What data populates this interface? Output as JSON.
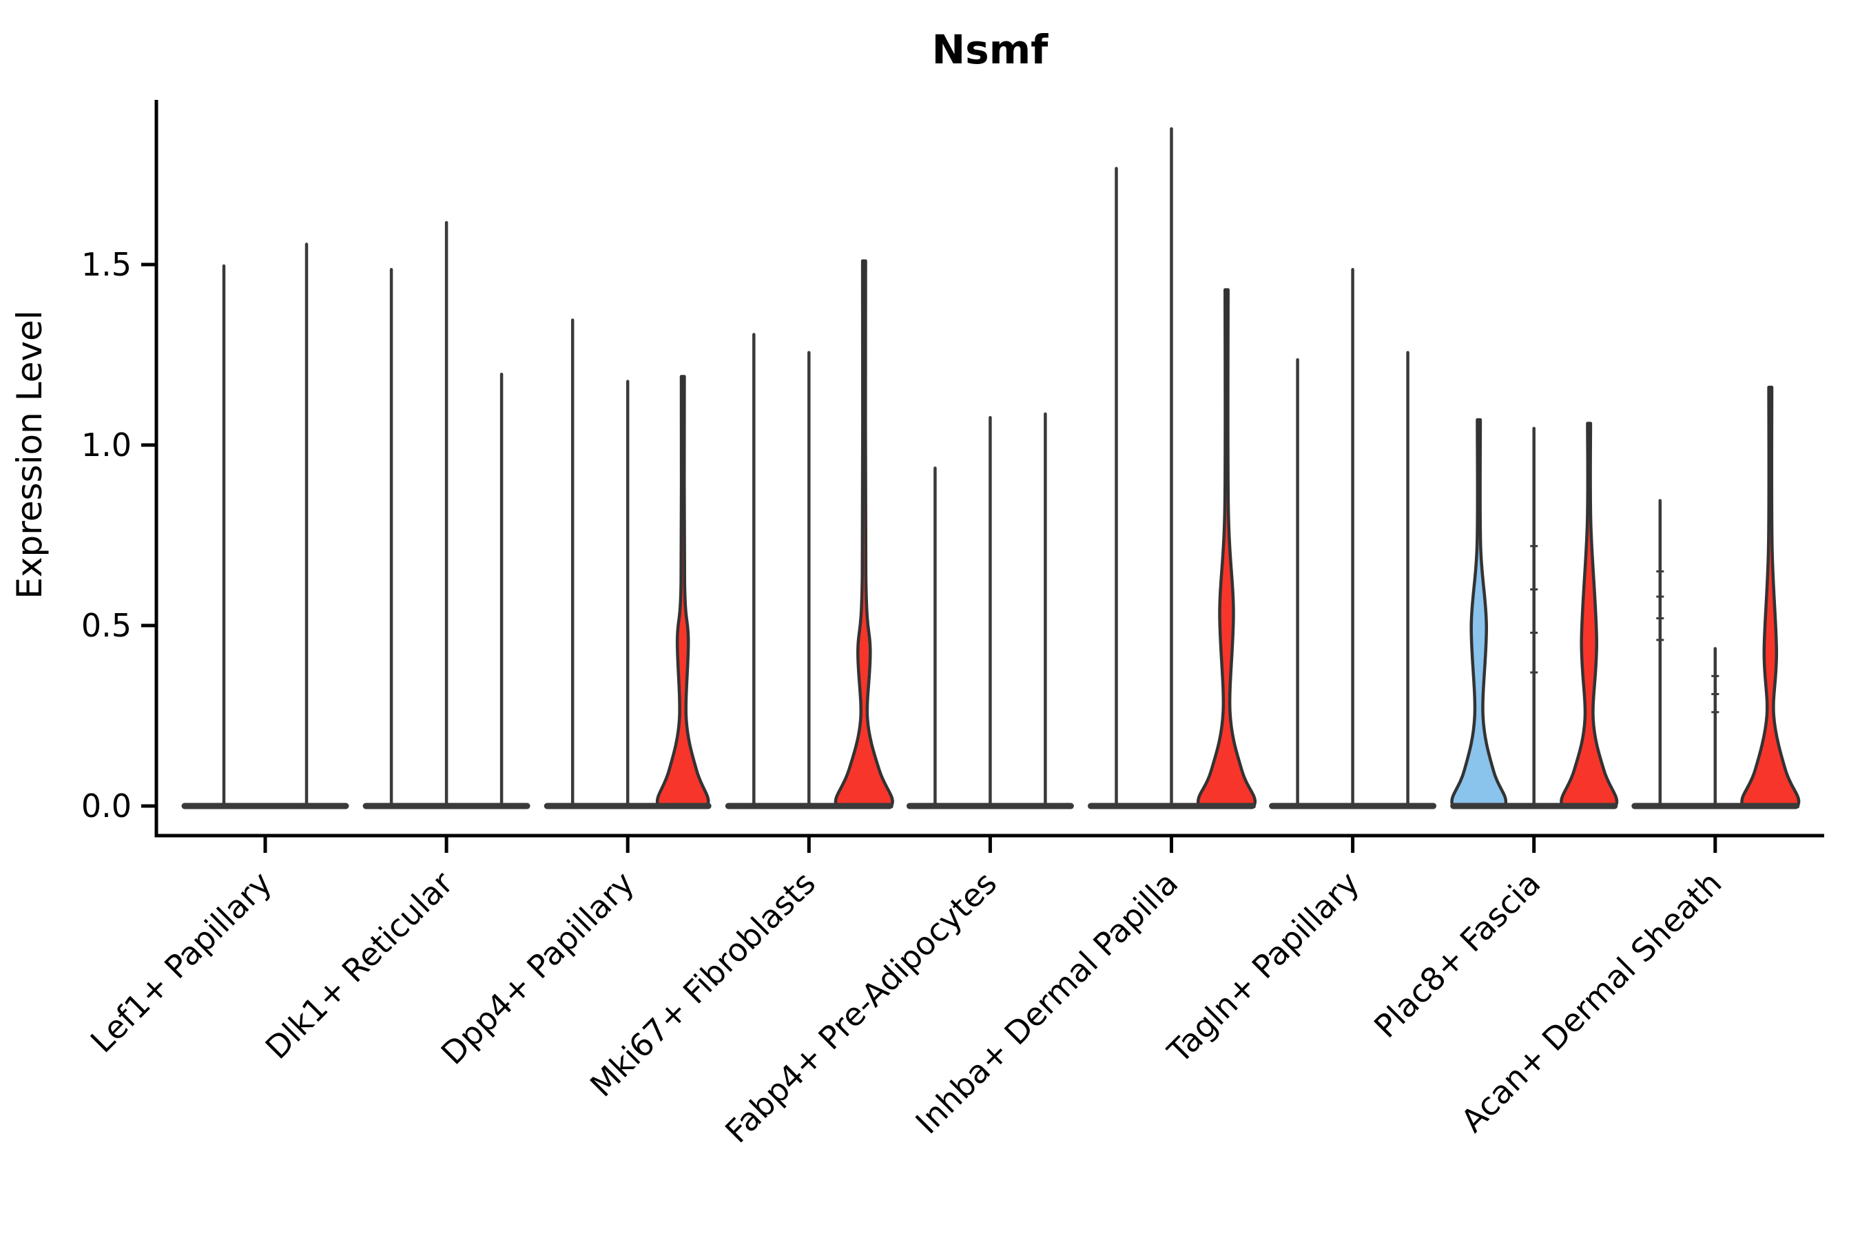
{
  "chart_data": {
    "type": "violin",
    "title": "Nsmf",
    "xlabel": "",
    "ylabel": "Expression Level",
    "ytick_labels": [
      "0.0",
      "0.5",
      "1.0",
      "1.5"
    ],
    "ytick_values": [
      0,
      0.5,
      1.0,
      1.5
    ],
    "ylim": [
      -0.08,
      1.96
    ],
    "grid": false,
    "legend": "none",
    "categories": [
      "Lef1+ Papillary",
      "Dlk1+ Reticular",
      "Dpp4+ Papillary",
      "Mki67+ Fibroblasts",
      "Fabp4+ Pre-Adipocytes",
      "Inhba+ Dermal Papilla",
      "Tagln+ Papillary",
      "Plac8+ Fascia",
      "Acan+ Dermal Sheath"
    ],
    "groups": [
      {
        "category": "Lef1+ Papillary",
        "violins": [
          {
            "max": 1.5,
            "fill": "none"
          },
          {
            "max": 1.56,
            "fill": "none"
          }
        ]
      },
      {
        "category": "Dlk1+ Reticular",
        "violins": [
          {
            "max": 1.49,
            "fill": "none"
          },
          {
            "max": 1.62,
            "fill": "none"
          },
          {
            "max": 1.2,
            "fill": "none"
          }
        ]
      },
      {
        "category": "Dpp4+ Papillary",
        "violins": [
          {
            "max": 1.35,
            "fill": "none"
          },
          {
            "max": 1.18,
            "fill": "none"
          },
          {
            "max": 1.19,
            "fill": "red",
            "body": {
              "bulge_top": 0.62,
              "bulge_peak": 0.46,
              "bulge_hw": 8,
              "waist_v": 0.24,
              "waist_hw": 5,
              "base_hw": 36
            }
          }
        ]
      },
      {
        "category": "Mki67+ Fibroblasts",
        "violins": [
          {
            "max": 1.31,
            "fill": "none"
          },
          {
            "max": 1.26,
            "fill": "none"
          },
          {
            "max": 1.51,
            "fill": "red",
            "body": {
              "bulge_top": 0.64,
              "bulge_peak": 0.43,
              "bulge_hw": 9,
              "waist_v": 0.24,
              "waist_hw": 5,
              "base_hw": 40
            }
          }
        ]
      },
      {
        "category": "Fabp4+ Pre-Adipocytes",
        "violins": [
          {
            "max": 0.94,
            "fill": "none"
          },
          {
            "max": 1.08,
            "fill": "none"
          },
          {
            "max": 1.09,
            "fill": "none"
          }
        ]
      },
      {
        "category": "Inhba+ Dermal Papilla",
        "violins": [
          {
            "max": 1.77,
            "fill": "none"
          },
          {
            "max": 1.88,
            "fill": "none"
          },
          {
            "max": 1.43,
            "fill": "red",
            "body": {
              "bulge_top": 0.82,
              "bulge_peak": 0.54,
              "bulge_hw": 10,
              "waist_v": 0.26,
              "waist_hw": 5,
              "base_hw": 40
            }
          }
        ]
      },
      {
        "category": "Tagln+ Papillary",
        "violins": [
          {
            "max": 1.24,
            "fill": "none"
          },
          {
            "max": 1.49,
            "fill": "none"
          },
          {
            "max": 1.26,
            "fill": "none"
          }
        ]
      },
      {
        "category": "Plac8+ Fascia",
        "violins": [
          {
            "max": 1.07,
            "fill": "blue",
            "body": {
              "bulge_top": 0.72,
              "bulge_peak": 0.5,
              "bulge_hw": 11,
              "waist_v": 0.25,
              "waist_hw": 6,
              "base_hw": 38
            }
          },
          {
            "max": 1.05,
            "fill": "none",
            "notches": [
              0.37,
              0.48,
              0.6,
              0.72
            ]
          },
          {
            "max": 1.06,
            "fill": "red",
            "body": {
              "bulge_top": 0.78,
              "bulge_peak": 0.46,
              "bulge_hw": 11,
              "waist_v": 0.24,
              "waist_hw": 6,
              "base_hw": 39
            }
          }
        ]
      },
      {
        "category": "Acan+ Dermal Sheath",
        "violins": [
          {
            "max": 0.85,
            "fill": "none",
            "notches": [
              0.46,
              0.52,
              0.58,
              0.65
            ]
          },
          {
            "max": 0.44,
            "fill": "none",
            "notches": [
              0.26,
              0.31,
              0.36
            ]
          },
          {
            "max": 1.16,
            "fill": "red",
            "body": {
              "bulge_top": 0.72,
              "bulge_peak": 0.43,
              "bulge_hw": 9,
              "waist_v": 0.25,
              "waist_hw": 5,
              "base_hw": 40
            }
          }
        ]
      }
    ],
    "colors": {
      "red": "#F8352B",
      "blue": "#8AC3EC",
      "outline": "#333333",
      "spike": "#3A3A3A",
      "axis": "#000000",
      "text": "#000000",
      "background": "#FFFFFF"
    }
  }
}
